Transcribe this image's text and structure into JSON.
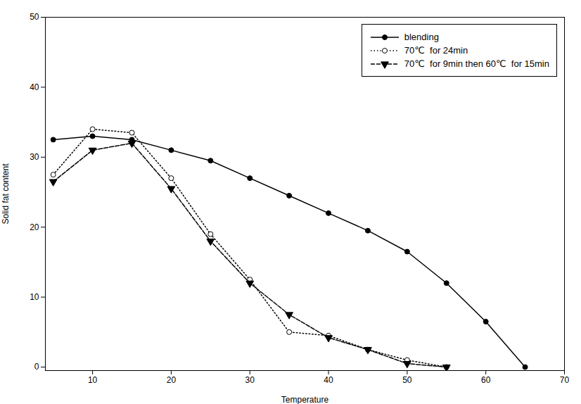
{
  "chart_data": {
    "type": "line",
    "xlabel": "Temperature",
    "ylabel": "Solid fat content",
    "xlim": [
      4,
      70
    ],
    "ylim": [
      -0.5,
      50
    ],
    "xticks": [
      10,
      20,
      30,
      40,
      50,
      60,
      70
    ],
    "yticks": [
      0,
      10,
      20,
      30,
      40,
      50
    ],
    "grid": false,
    "legend": "upper right",
    "series": [
      {
        "name": "blending",
        "color": "#000000",
        "marker": "circle",
        "line_style": "solid",
        "x": [
          5,
          10,
          15,
          20,
          25,
          30,
          35,
          40,
          45,
          50,
          55,
          60,
          65
        ],
        "values": [
          32.5,
          33.0,
          32.5,
          31.0,
          29.5,
          27.0,
          24.5,
          22.0,
          19.5,
          16.5,
          12.0,
          6.5,
          0.0
        ]
      },
      {
        "name": "70℃  for 24min",
        "color": "#000000",
        "marker": "circle_open",
        "line_style": "dotted",
        "x": [
          5,
          10,
          15,
          20,
          25,
          30,
          35,
          40,
          45,
          50,
          55
        ],
        "values": [
          27.5,
          34.0,
          33.5,
          27.0,
          19.0,
          12.5,
          5.0,
          4.5,
          2.5,
          1.0,
          0.0
        ]
      },
      {
        "name": "70℃  for 9min then 60℃  for 15min",
        "color": "#000000",
        "marker": "triangle_down",
        "line_style": "dashed",
        "x": [
          5,
          10,
          15,
          20,
          25,
          30,
          35,
          40,
          45,
          50,
          55
        ],
        "values": [
          26.5,
          31.0,
          32.0,
          25.5,
          18.0,
          12.0,
          7.5,
          4.2,
          2.5,
          0.5,
          0.0
        ]
      }
    ]
  }
}
